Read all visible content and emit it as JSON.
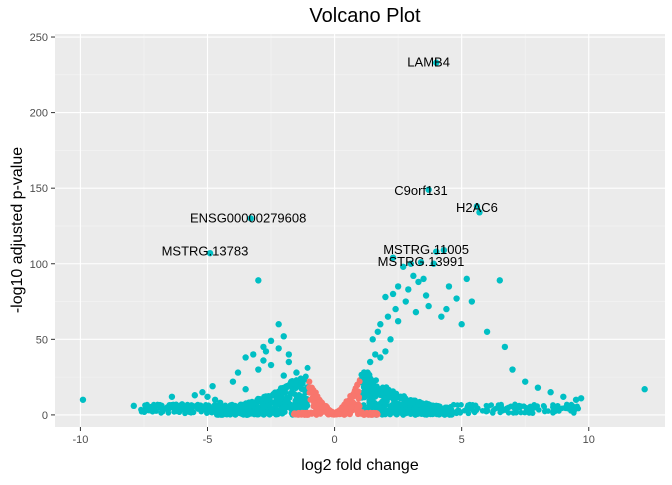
{
  "colors": {
    "significant": "#00BFC4",
    "not_significant": "#F8766D",
    "panel_bg": "#EBEBEB",
    "grid": "#FFFFFF"
  },
  "chart_data": {
    "type": "scatter",
    "title": "Volcano Plot",
    "xlabel": "log2 fold change",
    "ylabel": "-log10 adjusted p-value",
    "xlim": [
      -11,
      13
    ],
    "ylim": [
      -8,
      252
    ],
    "x_ticks": [
      -10,
      -5,
      0,
      5,
      10
    ],
    "y_ticks": [
      0,
      50,
      100,
      150,
      200,
      250
    ],
    "x_tick_labels": [
      "-10",
      "-5",
      "0",
      "5",
      "10"
    ],
    "y_tick_labels": [
      "0",
      "50",
      "100",
      "150",
      "200",
      "250"
    ],
    "grid": true,
    "legend": "none",
    "series": [
      {
        "key": "significant",
        "color": "#00BFC4",
        "points": [
          [
            -9.9,
            10
          ],
          [
            -7.9,
            6
          ],
          [
            -7.3,
            5
          ],
          [
            -6.7,
            4
          ],
          [
            -6.4,
            12
          ],
          [
            -6.0,
            7
          ],
          [
            -5.5,
            13
          ],
          [
            -5.2,
            15
          ],
          [
            -5.0,
            12
          ],
          [
            -4.8,
            19
          ],
          [
            -4.7,
            10
          ],
          [
            -4.5,
            8
          ],
          [
            -4.9,
            107
          ],
          [
            -4.3,
            5
          ],
          [
            -4.0,
            22
          ],
          [
            -3.8,
            28
          ],
          [
            -3.5,
            38
          ],
          [
            -3.5,
            17
          ],
          [
            -3.3,
            130
          ],
          [
            -3.2,
            40
          ],
          [
            -3.0,
            30
          ],
          [
            -3.0,
            89
          ],
          [
            -2.8,
            45
          ],
          [
            -2.8,
            36
          ],
          [
            -2.7,
            42
          ],
          [
            -2.5,
            49
          ],
          [
            -2.5,
            33
          ],
          [
            -2.2,
            60
          ],
          [
            -2.2,
            44
          ],
          [
            -2.0,
            52
          ],
          [
            -2.0,
            26
          ],
          [
            -1.8,
            35
          ],
          [
            -1.8,
            40
          ],
          [
            -1.7,
            22
          ],
          [
            -1.6,
            20
          ],
          [
            -1.5,
            28
          ],
          [
            -1.4,
            13
          ],
          [
            -1.3,
            12
          ],
          [
            -1.2,
            10
          ],
          [
            1.2,
            25
          ],
          [
            1.3,
            28
          ],
          [
            1.4,
            35
          ],
          [
            1.5,
            50
          ],
          [
            1.6,
            40
          ],
          [
            1.7,
            55
          ],
          [
            1.8,
            60
          ],
          [
            1.8,
            38
          ],
          [
            2.0,
            78
          ],
          [
            2.0,
            42
          ],
          [
            2.1,
            65
          ],
          [
            2.2,
            50
          ],
          [
            2.3,
            80
          ],
          [
            2.4,
            70
          ],
          [
            2.5,
            62
          ],
          [
            2.5,
            85
          ],
          [
            2.7,
            98
          ],
          [
            2.8,
            75
          ],
          [
            2.9,
            83
          ],
          [
            3.0,
            100
          ],
          [
            3.1,
            92
          ],
          [
            3.2,
            68
          ],
          [
            3.3,
            88
          ],
          [
            3.5,
            90
          ],
          [
            3.6,
            79
          ],
          [
            3.7,
            72
          ],
          [
            3.9,
            100
          ],
          [
            4.0,
            108
          ],
          [
            4.2,
            65
          ],
          [
            4.4,
            70
          ],
          [
            4.5,
            85
          ],
          [
            4.8,
            77
          ],
          [
            5.0,
            60
          ],
          [
            5.2,
            90
          ],
          [
            5.4,
            75
          ],
          [
            6.0,
            55
          ],
          [
            6.5,
            89
          ],
          [
            6.7,
            45
          ],
          [
            7.0,
            30
          ],
          [
            7.5,
            22
          ],
          [
            8.0,
            18
          ],
          [
            8.5,
            15
          ],
          [
            9.0,
            12
          ],
          [
            9.5,
            10
          ],
          [
            9.7,
            11
          ],
          [
            12.2,
            17
          ],
          [
            3.4,
            101
          ],
          [
            3.7,
            149
          ],
          [
            4.0,
            233
          ],
          [
            5.7,
            134
          ],
          [
            5.6,
            138
          ],
          [
            2.3,
            104
          ],
          [
            4.3,
            109
          ]
        ]
      },
      {
        "key": "not_significant",
        "color": "#F8766D",
        "points": [
          [
            -1.1,
            1
          ],
          [
            -1.0,
            22
          ],
          [
            -0.9,
            18
          ],
          [
            -0.8,
            15
          ],
          [
            -0.7,
            12
          ],
          [
            -0.6,
            10
          ],
          [
            -0.5,
            8
          ],
          [
            -0.4,
            6
          ],
          [
            -0.3,
            5
          ],
          [
            -0.2,
            3
          ],
          [
            -0.1,
            2
          ],
          [
            0.0,
            1
          ],
          [
            0.1,
            2
          ],
          [
            0.2,
            3
          ],
          [
            0.3,
            5
          ],
          [
            0.4,
            6
          ],
          [
            0.5,
            8
          ],
          [
            0.6,
            10
          ],
          [
            0.7,
            13
          ],
          [
            0.8,
            16
          ],
          [
            0.9,
            20
          ],
          [
            1.0,
            23
          ],
          [
            1.2,
            1
          ],
          [
            1.5,
            1
          ],
          [
            1.7,
            1
          ],
          [
            -1.4,
            1
          ],
          [
            -1.6,
            1
          ],
          [
            -1.2,
            3
          ],
          [
            1.1,
            4
          ]
        ]
      }
    ],
    "annotations": [
      {
        "label": "LAMB4",
        "x": 3.7,
        "y": 233
      },
      {
        "label": "C9orf131",
        "x": 3.4,
        "y": 148
      },
      {
        "label": "H2AC6",
        "x": 5.6,
        "y": 137
      },
      {
        "label": "ENSG00000279608",
        "x": -3.4,
        "y": 130
      },
      {
        "label": "MSTRG.13783",
        "x": -5.1,
        "y": 108
      },
      {
        "label": "MSTRG.11005",
        "x": 3.6,
        "y": 109
      },
      {
        "label": "MSTRG.13991",
        "x": 3.4,
        "y": 101
      }
    ]
  }
}
